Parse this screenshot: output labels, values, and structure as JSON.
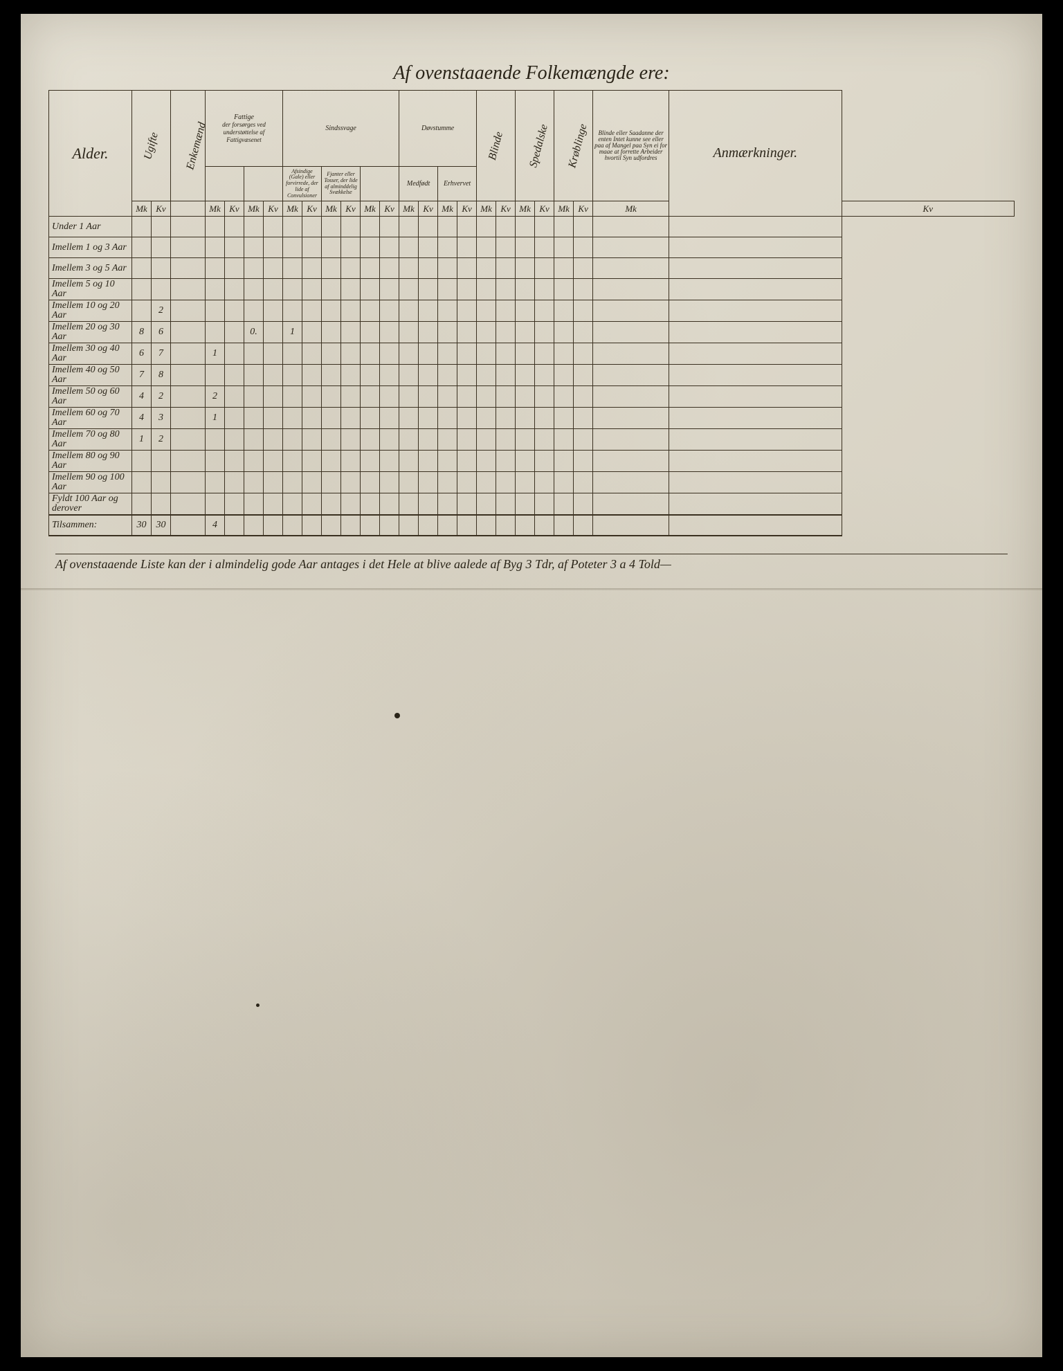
{
  "title": "Af ovenstaaende Folkemængde ere:",
  "colors": {
    "paper": "#e8e4d8",
    "ink": "#2a2418",
    "border": "#3a3020"
  },
  "headers": {
    "col_alder": "Alder.",
    "col_ugifte": "Ugifte",
    "col_enkemand": "Enkemænd",
    "group_fattige": "Fattige",
    "fattige_sub1": "der forsørges ved understøttelse af Fattigvæsenet",
    "fattige_sub2": "",
    "group_sindssvage": "Sindssvage",
    "sind_sub1": "Afsindige (Gale) eller forvirrede, der lide af Convulsioner",
    "sind_sub2": "Fjanter eller Tosser, der lide af alminddelig Svækkelse",
    "group_dovstumme": "Døvstumme",
    "dov_sub1": "Medfødt",
    "dov_sub2": "Erhvervet",
    "col_blinde": "Blinde",
    "col_spedalske": "Spedalske",
    "col_krøblinge": "Krøblinge",
    "col_blinde_note": "Blinde eller Saadanne der enten Intet kunne see eller paa af Mangel paa Syn ei for maae at forrette Arbeider hvortil Syn udfordres",
    "col_anm": "Anmærkninger.",
    "sub_mk": "Mk",
    "sub_kv": "Kv"
  },
  "rows": [
    {
      "label": "Under 1 Aar",
      "c1": "",
      "c2": "",
      "c3": "",
      "c4": "",
      "c5": "",
      "c6": ""
    },
    {
      "label": "Imellem 1 og 3 Aar",
      "c1": "",
      "c2": "",
      "c3": "",
      "c4": "",
      "c5": "",
      "c6": ""
    },
    {
      "label": "Imellem 3 og 5 Aar",
      "c1": "",
      "c2": "",
      "c3": "",
      "c4": "",
      "c5": "",
      "c6": ""
    },
    {
      "label": "Imellem 5 og 10 Aar",
      "c1": "",
      "c2": "",
      "c3": "",
      "c4": "",
      "c5": "",
      "c6": ""
    },
    {
      "label": "Imellem 10 og 20 Aar",
      "c1": "",
      "c2": "2",
      "c3": "",
      "c4": "",
      "c5": "",
      "c6": ""
    },
    {
      "label": "Imellem 20 og 30 Aar",
      "c1": "8",
      "c2": "6",
      "c3": "",
      "c4": "",
      "c5": "0.",
      "c6": "1"
    },
    {
      "label": "Imellem 30 og 40 Aar",
      "c1": "6",
      "c2": "7",
      "c3": "",
      "c4": "1",
      "c5": "",
      "c6": ""
    },
    {
      "label": "Imellem 40 og 50 Aar",
      "c1": "7",
      "c2": "8",
      "c3": "",
      "c4": "",
      "c5": "",
      "c6": ""
    },
    {
      "label": "Imellem 50 og 60 Aar",
      "c1": "4",
      "c2": "2",
      "c3": "",
      "c4": "2",
      "c5": "",
      "c6": ""
    },
    {
      "label": "Imellem 60 og 70 Aar",
      "c1": "4",
      "c2": "3",
      "c3": "",
      "c4": "1",
      "c5": "",
      "c6": ""
    },
    {
      "label": "Imellem 70 og 80 Aar",
      "c1": "1",
      "c2": "2",
      "c3": "",
      "c4": "",
      "c5": "",
      "c6": ""
    },
    {
      "label": "Imellem 80 og 90 Aar",
      "c1": "",
      "c2": "",
      "c3": "",
      "c4": "",
      "c5": "",
      "c6": ""
    },
    {
      "label": "Imellem 90 og 100 Aar",
      "c1": "",
      "c2": "",
      "c3": "",
      "c4": "",
      "c5": "",
      "c6": ""
    },
    {
      "label": "Fyldt 100 Aar og derover",
      "c1": "",
      "c2": "",
      "c3": "",
      "c4": "",
      "c5": "",
      "c6": ""
    }
  ],
  "sum": {
    "label": "Tilsammen:",
    "c1": "30",
    "c2": "30",
    "c3": "",
    "c4": "4",
    "c5": "",
    "c6": ""
  },
  "footnote": "Af ovenstaaende Liste kan der i almindelig gode Aar antages i det Hele at blive aalede af Byg 3 Tdr, af Poteter 3 a 4 Told—"
}
